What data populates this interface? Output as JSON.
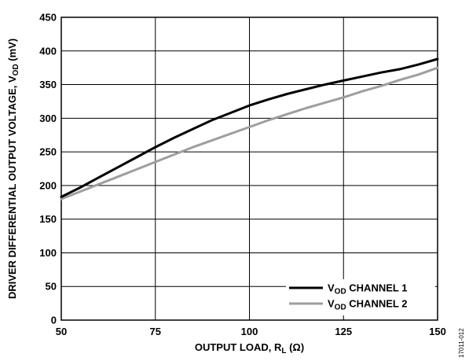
{
  "chart_data": {
    "type": "line",
    "xlabel_main": "OUTPUT LOAD, R",
    "xlabel_sub": "L",
    "xlabel_unit": " (Ω)",
    "ylabel_main": "DRIVER DIFFERENTIAL OUTPUT VOLTAGE, V",
    "ylabel_sub": "OD",
    "ylabel_unit": " (mV)",
    "xlim": [
      50,
      150
    ],
    "ylim": [
      0,
      450
    ],
    "x_ticks": [
      "50",
      "75",
      "100",
      "125",
      "150"
    ],
    "y_ticks": [
      "0",
      "50",
      "100",
      "150",
      "200",
      "250",
      "300",
      "350",
      "400",
      "450"
    ],
    "grid": true,
    "legend_position": "bottom-right",
    "series": [
      {
        "name_main": "V",
        "name_sub": "OD",
        "name_rest": " CHANNEL 1",
        "color": "#000000",
        "x": [
          50,
          55,
          60,
          65,
          70,
          75,
          80,
          85,
          90,
          95,
          100,
          105,
          110,
          115,
          120,
          125,
          130,
          135,
          140,
          145,
          150
        ],
        "y": [
          183,
          197,
          212,
          227,
          242,
          257,
          271,
          284,
          297,
          308,
          319,
          328,
          336,
          343,
          350,
          356,
          362,
          368,
          373,
          380,
          388
        ]
      },
      {
        "name_main": "V",
        "name_sub": "OD",
        "name_rest": " CHANNEL 2",
        "color": "#9e9e9e",
        "x": [
          50,
          55,
          60,
          65,
          70,
          75,
          80,
          85,
          90,
          95,
          100,
          105,
          110,
          115,
          120,
          125,
          130,
          135,
          140,
          145,
          150
        ],
        "y": [
          180,
          191,
          202,
          213,
          224,
          235,
          246,
          257,
          267,
          277,
          287,
          297,
          306,
          315,
          323,
          331,
          340,
          348,
          357,
          365,
          375
        ]
      }
    ]
  },
  "figure_code": "17011-012"
}
